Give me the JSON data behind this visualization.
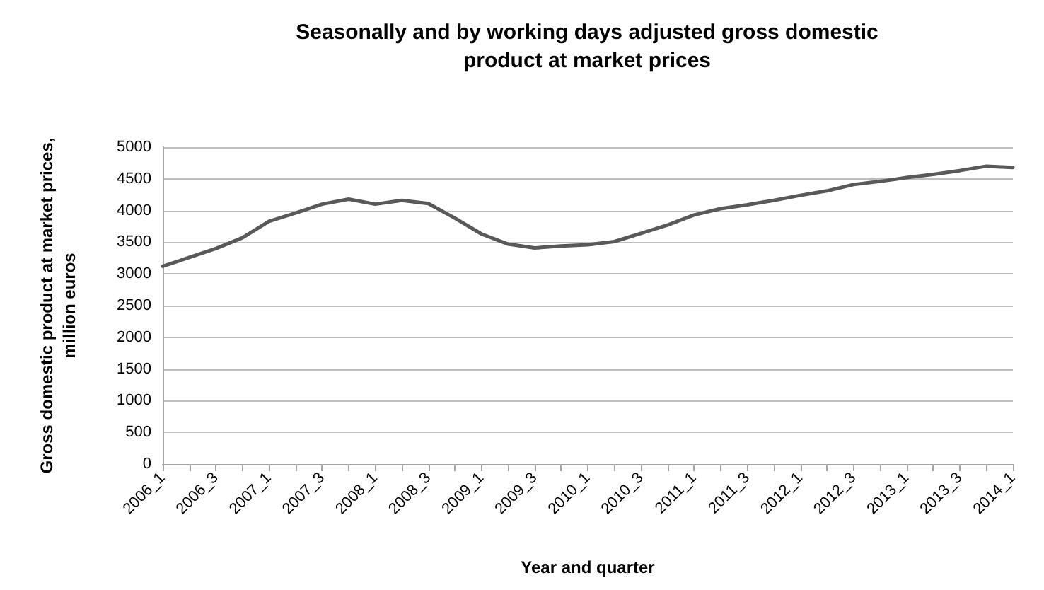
{
  "chart_data": {
    "type": "line",
    "title": "Seasonally and by working days adjusted gross domestic\nproduct at market prices",
    "xlabel": "Year and quarter",
    "ylabel": "Gross domestic product at market prices,\nmillion euros",
    "categories": [
      "2006_1",
      null,
      "2006_3",
      null,
      "2007_1",
      null,
      "2007_3",
      null,
      "2008_1",
      null,
      "2008_3",
      null,
      "2009_1",
      null,
      "2009_3",
      null,
      "2010_1",
      null,
      "2010_3",
      null,
      "2011_1",
      null,
      "2011_3",
      null,
      "2012_1",
      null,
      "2012_3",
      null,
      "2013_1",
      null,
      "2013_3",
      null,
      "2014_1"
    ],
    "series": [
      {
        "color": "#595959",
        "values": [
          3120,
          3260,
          3400,
          3570,
          3830,
          3960,
          4100,
          4180,
          4100,
          4160,
          4110,
          3880,
          3630,
          3470,
          3410,
          3440,
          3460,
          3510,
          3640,
          3770,
          3930,
          4030,
          4090,
          4160,
          4240,
          4310,
          4410,
          4460,
          4520,
          4570,
          4630,
          4700,
          4680
        ]
      }
    ],
    "ylim": [
      0,
      5000
    ],
    "yticks": [
      0,
      500,
      1000,
      1500,
      2000,
      2500,
      3000,
      3500,
      4000,
      4500,
      5000
    ],
    "grid": "y",
    "marker": "none",
    "line_style": "solid"
  }
}
